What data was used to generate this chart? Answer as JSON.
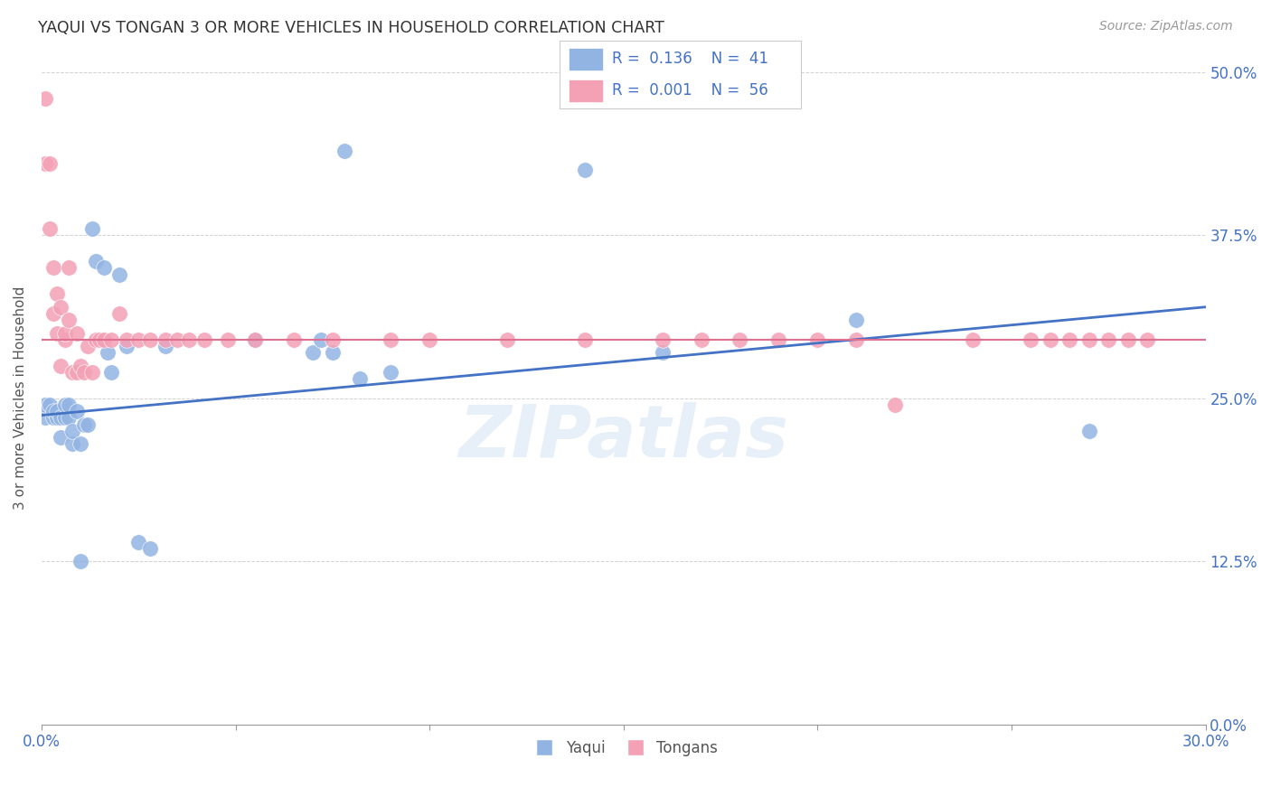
{
  "title": "YAQUI VS TONGAN 3 OR MORE VEHICLES IN HOUSEHOLD CORRELATION CHART",
  "source": "Source: ZipAtlas.com",
  "xlabel_ticks_vals": [
    0.0,
    0.05,
    0.1,
    0.15,
    0.2,
    0.25,
    0.3
  ],
  "xlabel_ticks_labels": [
    "0.0%",
    "",
    "",
    "",
    "",
    "",
    "30.0%"
  ],
  "ylabel_ticks_vals": [
    0.0,
    0.125,
    0.25,
    0.375,
    0.5
  ],
  "ylabel_ticks_labels": [
    "0.0%",
    "12.5%",
    "25.0%",
    "37.5%",
    "50.0%"
  ],
  "ylabel_label": "3 or more Vehicles in Household",
  "xmin": 0.0,
  "xmax": 0.3,
  "ymin": 0.0,
  "ymax": 0.5,
  "yaqui_color": "#92b4e3",
  "tongan_color": "#f4a0b5",
  "yaqui_R": "0.136",
  "yaqui_N": "41",
  "tongan_R": "0.001",
  "tongan_N": "56",
  "yaqui_line_color": "#4472c4",
  "tongan_line_color": "#e07090",
  "watermark": "ZIPatlas",
  "yaqui_x": [
    0.001,
    0.001,
    0.002,
    0.003,
    0.003,
    0.004,
    0.004,
    0.005,
    0.005,
    0.006,
    0.006,
    0.007,
    0.007,
    0.008,
    0.008,
    0.009,
    0.01,
    0.01,
    0.011,
    0.012,
    0.013,
    0.014,
    0.016,
    0.017,
    0.018,
    0.02,
    0.022,
    0.025,
    0.028,
    0.032,
    0.055,
    0.07,
    0.072,
    0.075,
    0.078,
    0.082,
    0.09,
    0.14,
    0.16,
    0.21,
    0.27
  ],
  "yaqui_y": [
    0.235,
    0.245,
    0.245,
    0.235,
    0.24,
    0.235,
    0.24,
    0.22,
    0.235,
    0.235,
    0.245,
    0.235,
    0.245,
    0.215,
    0.225,
    0.24,
    0.125,
    0.215,
    0.23,
    0.23,
    0.38,
    0.355,
    0.35,
    0.285,
    0.27,
    0.345,
    0.29,
    0.14,
    0.135,
    0.29,
    0.295,
    0.285,
    0.295,
    0.285,
    0.44,
    0.265,
    0.27,
    0.425,
    0.285,
    0.31,
    0.225
  ],
  "tongan_x": [
    0.001,
    0.001,
    0.002,
    0.002,
    0.003,
    0.003,
    0.004,
    0.004,
    0.005,
    0.005,
    0.006,
    0.006,
    0.007,
    0.007,
    0.008,
    0.009,
    0.009,
    0.01,
    0.011,
    0.012,
    0.013,
    0.014,
    0.015,
    0.016,
    0.018,
    0.02,
    0.022,
    0.025,
    0.028,
    0.032,
    0.035,
    0.038,
    0.042,
    0.048,
    0.055,
    0.065,
    0.075,
    0.09,
    0.1,
    0.12,
    0.14,
    0.16,
    0.17,
    0.18,
    0.19,
    0.2,
    0.21,
    0.22,
    0.24,
    0.255,
    0.26,
    0.265,
    0.27,
    0.275,
    0.28,
    0.285
  ],
  "tongan_y": [
    0.48,
    0.43,
    0.43,
    0.38,
    0.35,
    0.315,
    0.33,
    0.3,
    0.32,
    0.275,
    0.295,
    0.3,
    0.31,
    0.35,
    0.27,
    0.3,
    0.27,
    0.275,
    0.27,
    0.29,
    0.27,
    0.295,
    0.295,
    0.295,
    0.295,
    0.315,
    0.295,
    0.295,
    0.295,
    0.295,
    0.295,
    0.295,
    0.295,
    0.295,
    0.295,
    0.295,
    0.295,
    0.295,
    0.295,
    0.295,
    0.295,
    0.295,
    0.295,
    0.295,
    0.295,
    0.295,
    0.295,
    0.245,
    0.295,
    0.295,
    0.295,
    0.295,
    0.295,
    0.295,
    0.295,
    0.295
  ]
}
